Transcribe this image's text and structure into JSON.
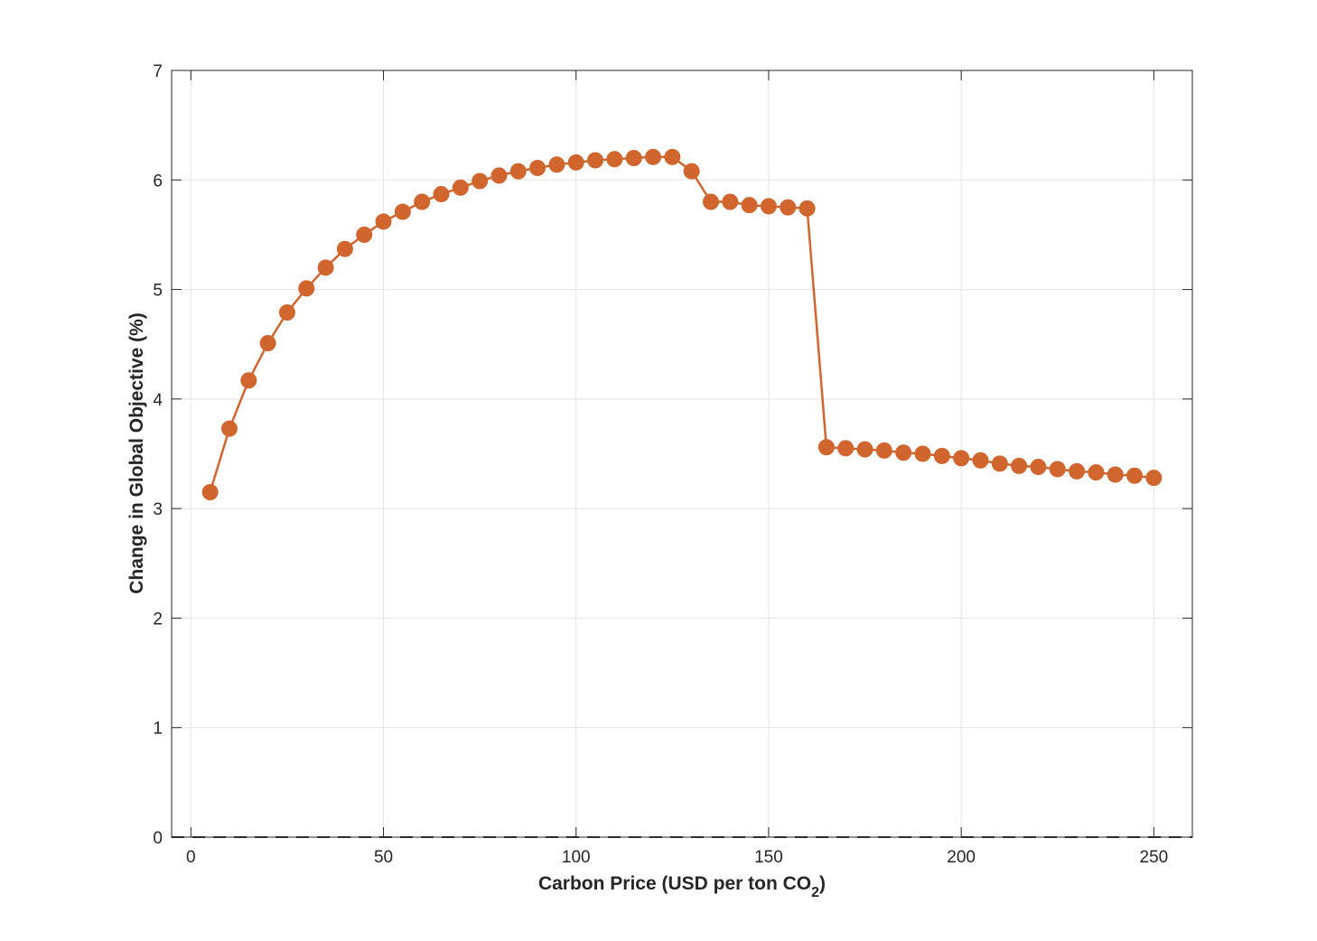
{
  "chart_data": {
    "type": "line",
    "xlabel_main": "Carbon Price (USD per ton CO",
    "xlabel_sub": "2",
    "xlabel_close": ")",
    "ylabel": "Change in Global Objective (%)",
    "xlim": [
      -5,
      260
    ],
    "ylim": [
      0,
      7
    ],
    "xticks": [
      0,
      50,
      100,
      150,
      200,
      250
    ],
    "yticks": [
      0,
      1,
      2,
      3,
      4,
      5,
      6,
      7
    ],
    "grid": true,
    "baseline": {
      "y": 0,
      "style": "dashed",
      "color": "#333333"
    },
    "series": [
      {
        "color": "#D0652E",
        "marker": "circle",
        "x": [
          5,
          10,
          15,
          20,
          25,
          30,
          35,
          40,
          45,
          50,
          55,
          60,
          65,
          70,
          75,
          80,
          85,
          90,
          95,
          100,
          105,
          110,
          115,
          120,
          125,
          130,
          135,
          140,
          145,
          150,
          155,
          160,
          165,
          170,
          175,
          180,
          185,
          190,
          195,
          200,
          205,
          210,
          215,
          220,
          225,
          230,
          235,
          240,
          245,
          250
        ],
        "values": [
          3.15,
          3.73,
          4.17,
          4.51,
          4.79,
          5.01,
          5.2,
          5.37,
          5.5,
          5.62,
          5.71,
          5.8,
          5.87,
          5.93,
          5.99,
          6.04,
          6.08,
          6.11,
          6.14,
          6.16,
          6.18,
          6.19,
          6.2,
          6.21,
          6.21,
          6.08,
          5.8,
          5.8,
          5.77,
          5.76,
          5.75,
          5.74,
          3.56,
          3.55,
          3.54,
          3.53,
          3.51,
          3.5,
          3.48,
          3.46,
          3.44,
          3.41,
          3.39,
          3.38,
          3.36,
          3.34,
          3.33,
          3.31,
          3.3,
          3.28
        ]
      }
    ]
  }
}
